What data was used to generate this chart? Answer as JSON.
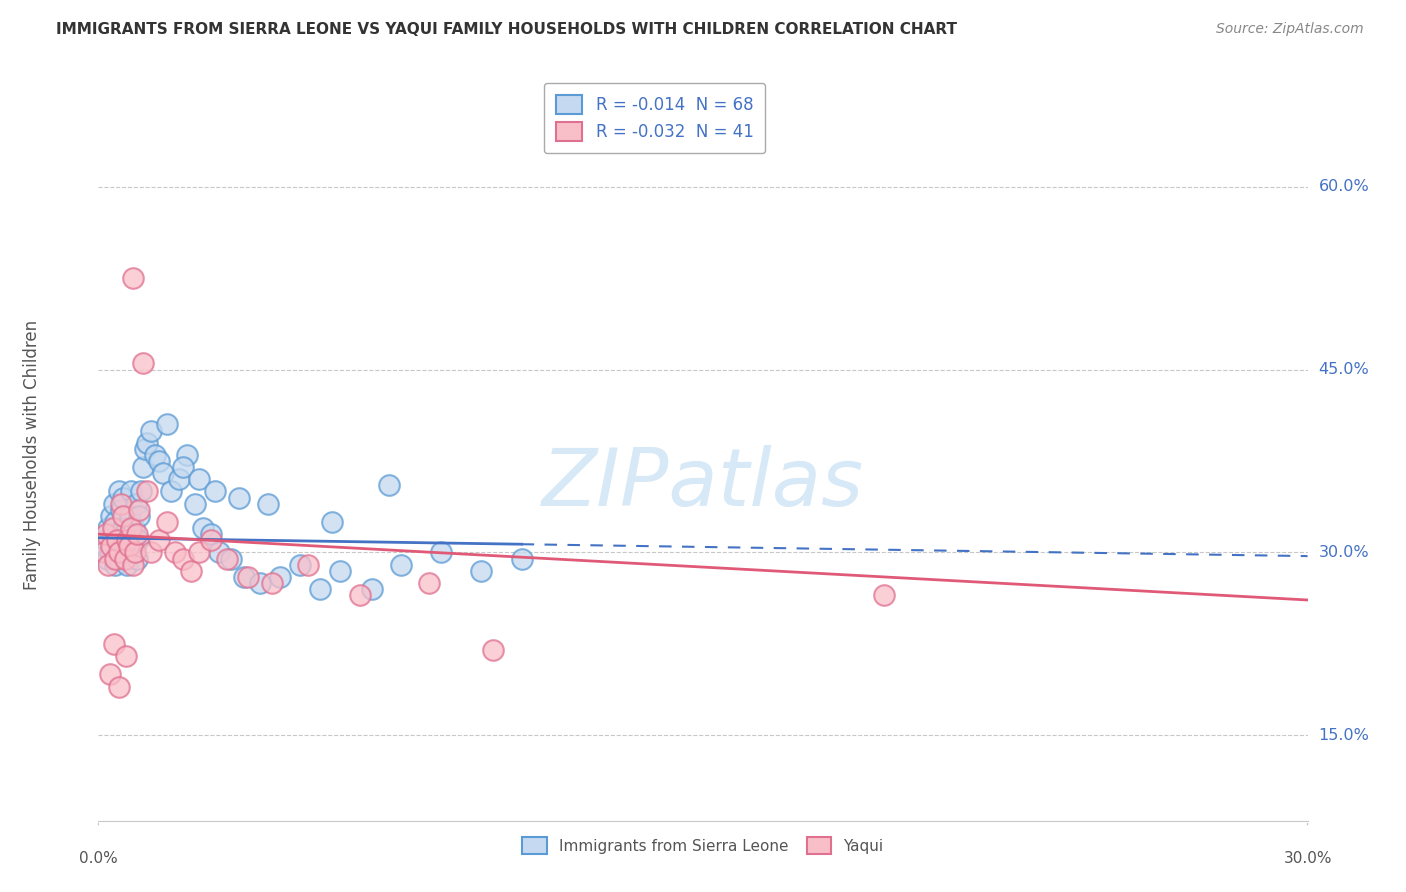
{
  "title": "IMMIGRANTS FROM SIERRA LEONE VS YAQUI FAMILY HOUSEHOLDS WITH CHILDREN CORRELATION CHART",
  "source": "Source: ZipAtlas.com",
  "ylabel": "Family Households with Children",
  "y_ticks": [
    15.0,
    30.0,
    45.0,
    60.0
  ],
  "xlim": [
    0.0,
    30.0
  ],
  "ylim": [
    8.0,
    68.0
  ],
  "legend_entries": [
    {
      "label": "R = -0.014  N = 68",
      "color": "#b8d0ea"
    },
    {
      "label": "R = -0.032  N = 41",
      "color": "#f4a7b9"
    }
  ],
  "legend_bottom": [
    "Immigrants from Sierra Leone",
    "Yaqui"
  ],
  "blue_face": "#c5d9f0",
  "pink_face": "#f9bfc9",
  "blue_edge": "#5b9bd5",
  "pink_edge": "#e07090",
  "blue_line_color": "#4472c4",
  "pink_line_color": "#e05a78",
  "watermark": "ZIPatlas",
  "blue_scatter_x": [
    0.15,
    0.18,
    0.22,
    0.25,
    0.28,
    0.32,
    0.35,
    0.38,
    0.4,
    0.42,
    0.45,
    0.48,
    0.5,
    0.52,
    0.55,
    0.58,
    0.6,
    0.62,
    0.65,
    0.68,
    0.7,
    0.72,
    0.75,
    0.78,
    0.8,
    0.82,
    0.85,
    0.88,
    0.9,
    0.92,
    0.95,
    0.98,
    1.0,
    1.05,
    1.1,
    1.15,
    1.2,
    1.3,
    1.4,
    1.5,
    1.6,
    1.8,
    2.0,
    2.2,
    2.4,
    2.6,
    2.8,
    3.0,
    3.3,
    3.6,
    4.0,
    4.5,
    5.0,
    5.5,
    6.0,
    6.8,
    7.5,
    8.5,
    9.5,
    10.5,
    1.7,
    2.1,
    2.5,
    2.9,
    3.5,
    4.2,
    5.8,
    7.2
  ],
  "blue_scatter_y": [
    30.5,
    31.0,
    29.5,
    32.0,
    30.0,
    33.0,
    31.5,
    34.0,
    29.0,
    32.5,
    30.0,
    31.0,
    35.0,
    29.5,
    33.5,
    30.0,
    32.0,
    34.5,
    31.0,
    30.0,
    29.0,
    32.0,
    31.5,
    33.0,
    30.5,
    35.0,
    31.0,
    32.0,
    30.0,
    34.0,
    29.5,
    31.0,
    33.0,
    35.0,
    37.0,
    38.5,
    39.0,
    40.0,
    38.0,
    37.5,
    36.5,
    35.0,
    36.0,
    38.0,
    34.0,
    32.0,
    31.5,
    30.0,
    29.5,
    28.0,
    27.5,
    28.0,
    29.0,
    27.0,
    28.5,
    27.0,
    29.0,
    30.0,
    28.5,
    29.5,
    40.5,
    37.0,
    36.0,
    35.0,
    34.5,
    34.0,
    32.5,
    35.5
  ],
  "pink_scatter_x": [
    0.15,
    0.2,
    0.25,
    0.3,
    0.35,
    0.4,
    0.45,
    0.5,
    0.55,
    0.6,
    0.65,
    0.7,
    0.75,
    0.8,
    0.85,
    0.9,
    0.95,
    1.0,
    1.1,
    1.2,
    1.3,
    1.5,
    1.7,
    1.9,
    2.1,
    2.3,
    2.5,
    2.8,
    3.2,
    3.7,
    4.3,
    5.2,
    6.5,
    8.2,
    9.8,
    19.5,
    0.28,
    0.38,
    0.52,
    0.68,
    0.85
  ],
  "pink_scatter_y": [
    30.0,
    31.5,
    29.0,
    30.5,
    32.0,
    29.5,
    31.0,
    30.0,
    34.0,
    33.0,
    29.5,
    31.0,
    30.5,
    32.0,
    29.0,
    30.0,
    31.5,
    33.5,
    45.5,
    35.0,
    30.0,
    31.0,
    32.5,
    30.0,
    29.5,
    28.5,
    30.0,
    31.0,
    29.5,
    28.0,
    27.5,
    29.0,
    26.5,
    27.5,
    22.0,
    26.5,
    20.0,
    22.5,
    19.0,
    21.5,
    52.5
  ],
  "blue_line_x_end": 10.5,
  "blue_line_intercept": 31.2,
  "blue_line_slope": -0.05,
  "pink_line_intercept": 31.5,
  "pink_line_slope": -0.18
}
